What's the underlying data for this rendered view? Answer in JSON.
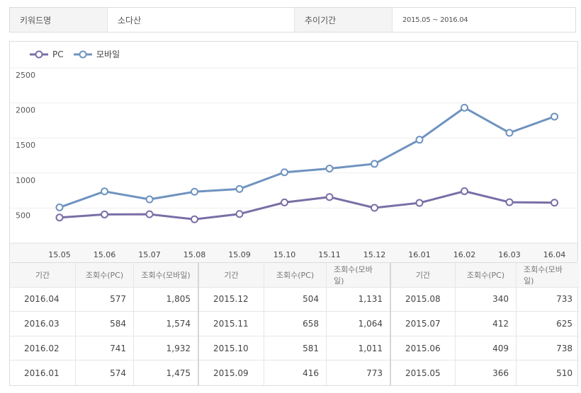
{
  "info": {
    "keyword_label": "키워드명",
    "keyword_value": "소다산",
    "period_label": "추이기간",
    "period_value": "2015.05 ~ 2016.04"
  },
  "colors": {
    "pc": "#7a6ea6",
    "mobile": "#6f93bf"
  },
  "chart_data": {
    "type": "line",
    "categories": [
      "15.05",
      "15.06",
      "15.07",
      "15.08",
      "15.09",
      "15.10",
      "15.11",
      "15.12",
      "16.01",
      "16.02",
      "16.03",
      "16.04"
    ],
    "series": [
      {
        "name": "PC",
        "values": [
          366,
          409,
          412,
          340,
          416,
          581,
          658,
          504,
          574,
          741,
          584,
          577
        ]
      },
      {
        "name": "모바일",
        "values": [
          510,
          738,
          625,
          733,
          773,
          1011,
          1064,
          1131,
          1475,
          1932,
          1574,
          1805
        ]
      }
    ],
    "yticks": [
      "2500",
      "2000",
      "1500",
      "1000",
      "500"
    ],
    "ylim": [
      0,
      2500
    ],
    "legend": "top-left"
  },
  "table": {
    "headers": [
      "기간",
      "조회수(PC)",
      "조회수(모바일)"
    ],
    "groups": [
      [
        {
          "date": "2016.04",
          "pc": "577",
          "mobile": "1,805"
        },
        {
          "date": "2016.03",
          "pc": "584",
          "mobile": "1,574"
        },
        {
          "date": "2016.02",
          "pc": "741",
          "mobile": "1,932"
        },
        {
          "date": "2016.01",
          "pc": "574",
          "mobile": "1,475"
        }
      ],
      [
        {
          "date": "2015.12",
          "pc": "504",
          "mobile": "1,131"
        },
        {
          "date": "2015.11",
          "pc": "658",
          "mobile": "1,064"
        },
        {
          "date": "2015.10",
          "pc": "581",
          "mobile": "1,011"
        },
        {
          "date": "2015.09",
          "pc": "416",
          "mobile": "773"
        }
      ],
      [
        {
          "date": "2015.08",
          "pc": "340",
          "mobile": "733"
        },
        {
          "date": "2015.07",
          "pc": "412",
          "mobile": "625"
        },
        {
          "date": "2015.06",
          "pc": "409",
          "mobile": "738"
        },
        {
          "date": "2015.05",
          "pc": "366",
          "mobile": "510"
        }
      ]
    ]
  }
}
